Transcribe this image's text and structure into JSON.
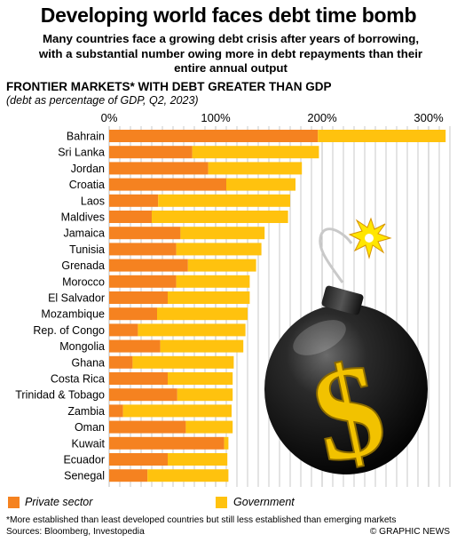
{
  "title": "Developing world faces debt time bomb",
  "subtitle": "Many countries face a growing debt crisis after years of borrowing, with a substantial number owing more in debt repayments than their entire annual output",
  "section_title": "FRONTIER MARKETS* WITH DEBT GREATER THAN GDP",
  "section_subtitle": "(debt as percentage of GDP, Q2, 2023)",
  "legend": {
    "private": "Private sector",
    "government": "Government"
  },
  "footnote": "*More established than least developed countries but still less established than emerging markets",
  "sources": "Sources: Bloomberg, Investopedia",
  "credit": "© GRAPHIC NEWS",
  "colors": {
    "private": "#f58220",
    "government": "#ffc20e",
    "grid": "#bdbdbd"
  },
  "chart_data": {
    "type": "bar",
    "orientation": "horizontal",
    "stacked": true,
    "categories": [
      "Bahrain",
      "Sri Lanka",
      "Jordan",
      "Croatia",
      "Laos",
      "Maldives",
      "Jamaica",
      "Tunisia",
      "Grenada",
      "Morocco",
      "El Salvador",
      "Mozambique",
      "Rep. of Congo",
      "Mongolia",
      "Ghana",
      "Costa Rica",
      "Trinidad & Tobago",
      "Zambia",
      "Oman",
      "Kuwait",
      "Ecuador",
      "Senegal"
    ],
    "series": [
      {
        "name": "Private sector",
        "values": [
          196,
          78,
          93,
          110,
          46,
          40,
          67,
          63,
          74,
          63,
          55,
          45,
          27,
          48,
          22,
          55,
          64,
          13,
          72,
          108,
          55,
          36
        ]
      },
      {
        "name": "Government",
        "values": [
          120,
          119,
          88,
          65,
          124,
          128,
          79,
          80,
          64,
          69,
          77,
          85,
          101,
          78,
          95,
          61,
          52,
          102,
          44,
          4,
          56,
          76
        ]
      }
    ],
    "xlim": [
      0,
      320
    ],
    "xticks": [
      "0%",
      "100%",
      "200%",
      "300%"
    ],
    "xtick_values": [
      0,
      100,
      200,
      300
    ],
    "grid": true,
    "legend_position": "bottom"
  }
}
